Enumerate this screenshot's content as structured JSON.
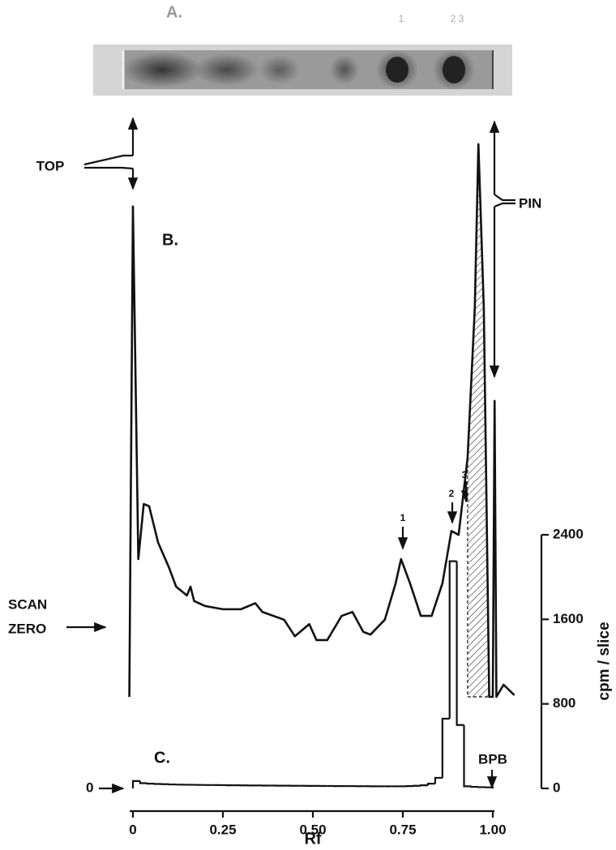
{
  "gel": {
    "label": "A.",
    "bands": [
      "1",
      "2 3"
    ]
  },
  "annotations": {
    "top": "TOP",
    "pin": "PIN",
    "scan_zero": [
      "SCAN",
      "ZERO"
    ],
    "zero": "0",
    "bpb": "BPB",
    "peaks": [
      "1",
      "2",
      "3"
    ]
  },
  "chart_data": [
    {
      "type": "line",
      "label": "B.",
      "x": [
        -0.01,
        0.0,
        0.015,
        0.03,
        0.045,
        0.07,
        0.1,
        0.12,
        0.15,
        0.16,
        0.17,
        0.2,
        0.25,
        0.3,
        0.34,
        0.36,
        0.42,
        0.45,
        0.49,
        0.51,
        0.54,
        0.58,
        0.61,
        0.64,
        0.66,
        0.7,
        0.73,
        0.745,
        0.77,
        0.8,
        0.83,
        0.86,
        0.885,
        0.905,
        0.93,
        0.95,
        0.96,
        0.975,
        0.99,
        1.0,
        1.005,
        1.01,
        1.03,
        1.06
      ],
      "values": [
        0,
        89,
        25,
        35,
        34.6,
        28,
        23.5,
        20,
        18.4,
        20,
        17.4,
        16.5,
        15.9,
        15.9,
        17,
        15.4,
        14,
        11,
        13.2,
        10.3,
        10.3,
        14.7,
        15.4,
        11.8,
        11.3,
        14,
        20.6,
        25,
        20.6,
        14.7,
        14.7,
        20.6,
        30.1,
        29.4,
        43.4,
        70.6,
        100.3,
        70.6,
        0,
        0,
        53.7,
        0,
        2.2,
        0.3
      ],
      "ylim": [
        0,
        100
      ],
      "color": "#111111",
      "hatched_range": [
        0.93,
        0.99
      ]
    },
    {
      "type": "histogram",
      "label": "C.",
      "bins": [
        0,
        0.02,
        0.04,
        0.06,
        0.08,
        0.1,
        0.12,
        0.14,
        0.16,
        0.18,
        0.2,
        0.22,
        0.24,
        0.26,
        0.28,
        0.3,
        0.32,
        0.34,
        0.36,
        0.38,
        0.4,
        0.42,
        0.44,
        0.46,
        0.48,
        0.5,
        0.52,
        0.54,
        0.56,
        0.58,
        0.6,
        0.62,
        0.64,
        0.66,
        0.68,
        0.7,
        0.72,
        0.74,
        0.76,
        0.78,
        0.8,
        0.82,
        0.84,
        0.86,
        0.88,
        0.9,
        0.92,
        0.94,
        0.96,
        0.98,
        1.0
      ],
      "values": [
        70,
        50,
        45,
        42,
        40,
        38,
        36,
        35,
        34,
        33,
        32,
        32,
        31,
        30,
        30,
        29,
        28,
        28,
        27,
        27,
        26,
        26,
        25,
        25,
        24,
        24,
        23,
        23,
        22,
        22,
        22,
        21,
        21,
        20,
        20,
        20,
        20,
        20,
        22,
        25,
        30,
        45,
        100,
        660,
        2150,
        600,
        20,
        15,
        12,
        10
      ],
      "color": "#111111",
      "x_label": "Rf",
      "y_label": "cpm / slice",
      "xlim": [
        0,
        1.0
      ],
      "xticks": [
        0,
        0.25,
        {
          "value": 0.5,
          "label": "0.50"
        },
        0.75,
        {
          "value": 1.0,
          "label": "1.00"
        }
      ],
      "ylim": [
        0,
        2400
      ],
      "yticks": [
        0,
        800,
        1600,
        2400
      ]
    }
  ]
}
